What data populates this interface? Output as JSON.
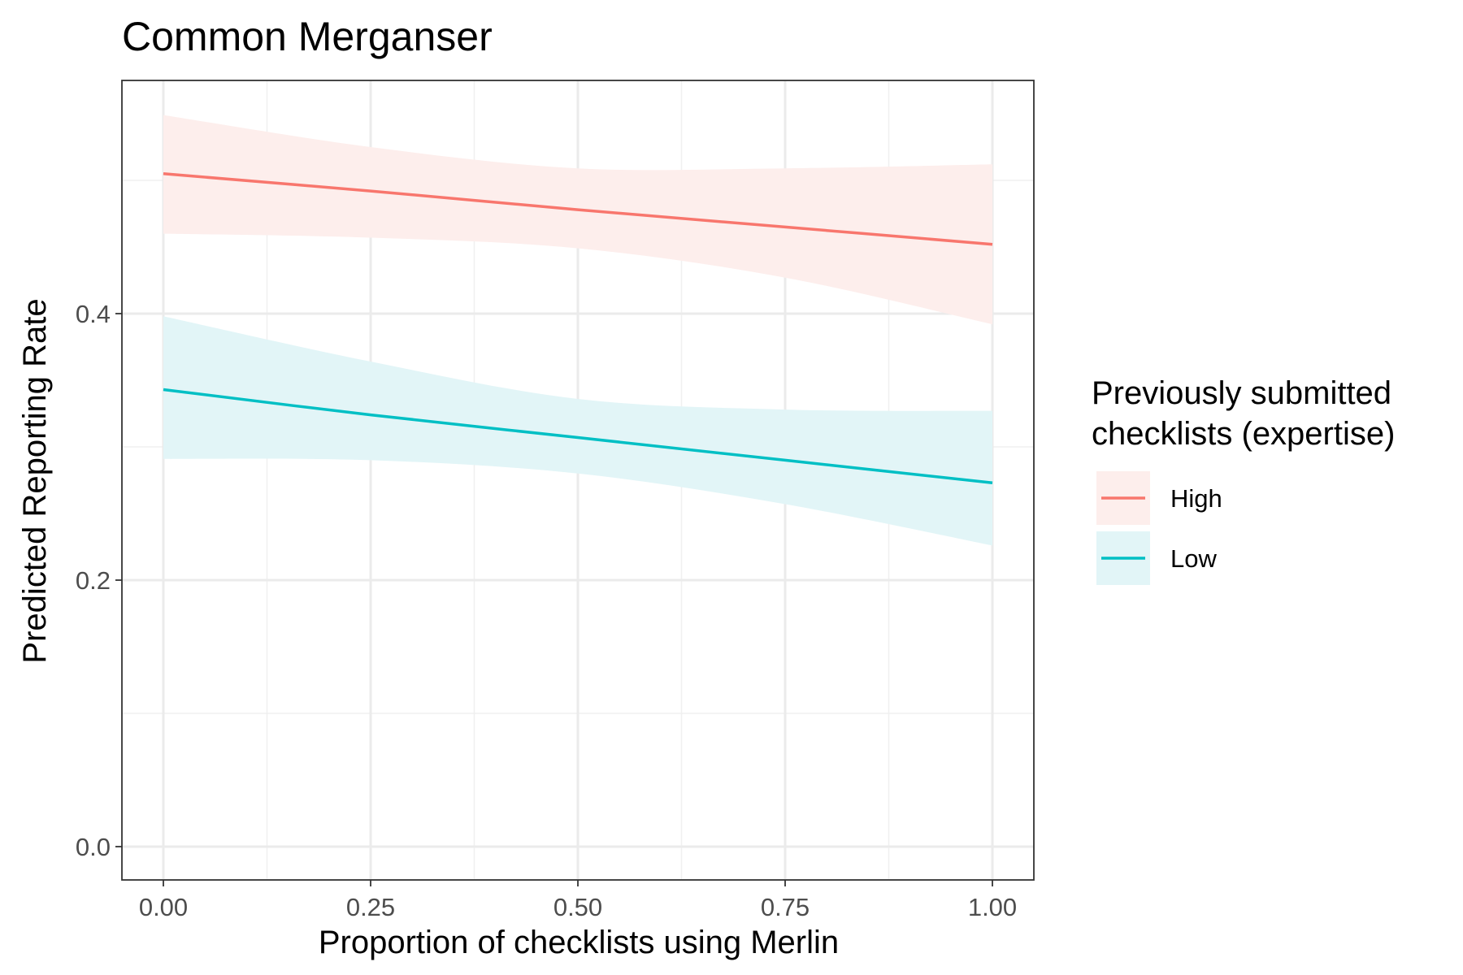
{
  "chart_data": {
    "type": "line",
    "title": "Common Merganser",
    "xlabel": "Proportion of checklists using Merlin",
    "ylabel": "Predicted Reporting Rate",
    "xlim": [
      -0.05,
      1.05
    ],
    "ylim": [
      -0.025,
      0.575
    ],
    "x_ticks": [
      0.0,
      0.25,
      0.5,
      0.75,
      1.0
    ],
    "x_tick_labels": [
      "0.00",
      "0.25",
      "0.50",
      "0.75",
      "1.00"
    ],
    "y_ticks": [
      0.0,
      0.2,
      0.4
    ],
    "y_tick_labels": [
      "0.0",
      "0.2",
      "0.4"
    ],
    "grid": true,
    "legend": {
      "title_lines": [
        "Previously submitted",
        "checklists (expertise)"
      ],
      "position": "right"
    },
    "series": [
      {
        "name": "High",
        "color": "#F8766D",
        "fill": "#FDEEEC",
        "x": [
          0.0,
          0.25,
          0.5,
          0.75,
          1.0
        ],
        "y": [
          0.505,
          0.492,
          0.478,
          0.465,
          0.452
        ],
        "lower": [
          0.46,
          0.457,
          0.449,
          0.427,
          0.392
        ],
        "upper": [
          0.549,
          0.525,
          0.509,
          0.509,
          0.512
        ]
      },
      {
        "name": "Low",
        "color": "#00BFC4",
        "fill": "#E2F5F7",
        "x": [
          0.0,
          0.25,
          0.5,
          0.75,
          1.0
        ],
        "y": [
          0.343,
          0.324,
          0.307,
          0.29,
          0.273
        ],
        "lower": [
          0.291,
          0.29,
          0.28,
          0.257,
          0.226
        ],
        "upper": [
          0.398,
          0.364,
          0.336,
          0.328,
          0.327
        ]
      }
    ]
  }
}
